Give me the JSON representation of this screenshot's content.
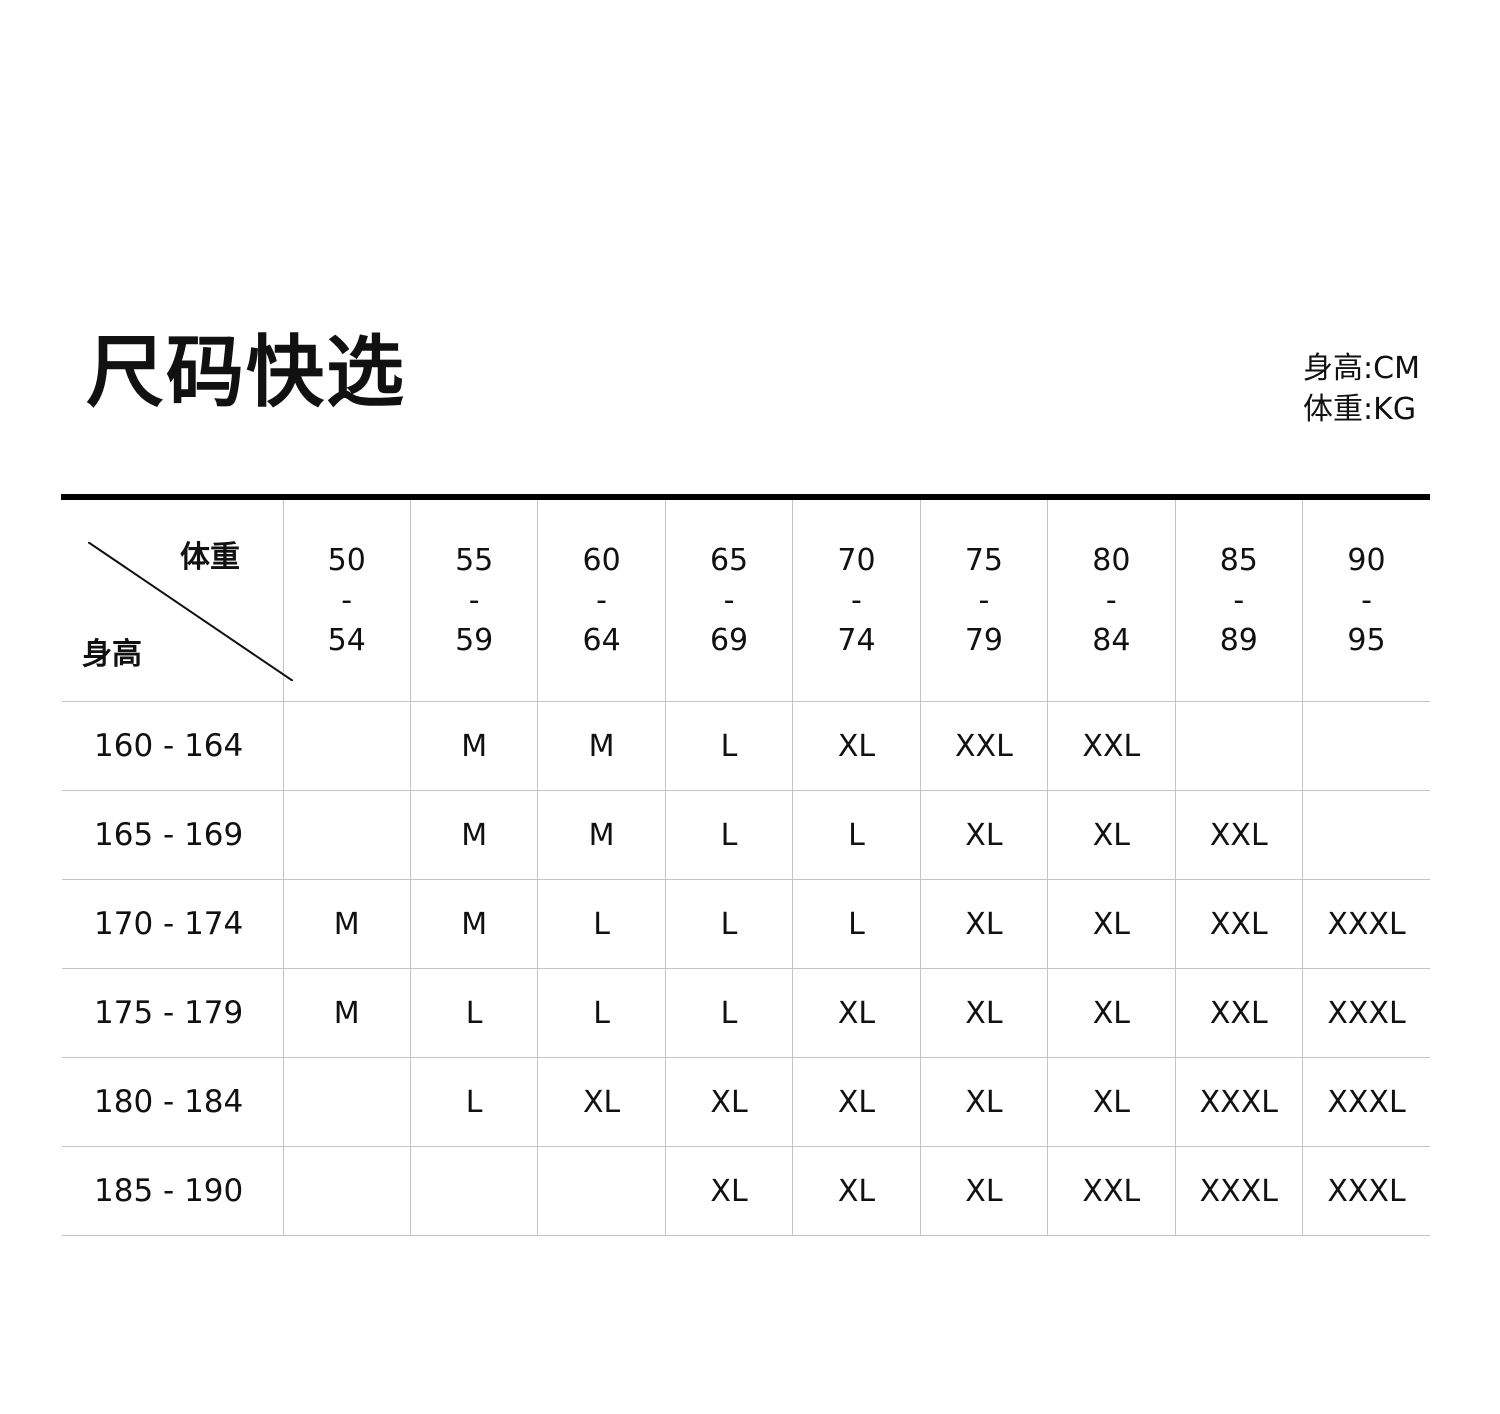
{
  "title": "尺码快选",
  "units": {
    "height": "身高:CM",
    "weight": "体重:KG"
  },
  "corner": {
    "weight_label": "体重",
    "height_label": "身高"
  },
  "chart_data": {
    "type": "table",
    "weight_columns": [
      [
        "50",
        "-",
        "54"
      ],
      [
        "55",
        "-",
        "59"
      ],
      [
        "60",
        "-",
        "64"
      ],
      [
        "65",
        "-",
        "69"
      ],
      [
        "70",
        "-",
        "74"
      ],
      [
        "75",
        "-",
        "79"
      ],
      [
        "80",
        "-",
        "84"
      ],
      [
        "85",
        "-",
        "89"
      ],
      [
        "90",
        "-",
        "95"
      ]
    ],
    "rows": [
      {
        "height": "160 - 164",
        "sizes": [
          "",
          "M",
          "M",
          "L",
          "XL",
          "XXL",
          "XXL",
          "",
          ""
        ]
      },
      {
        "height": "165 - 169",
        "sizes": [
          "",
          "M",
          "M",
          "L",
          "L",
          "XL",
          "XL",
          "XXL",
          ""
        ]
      },
      {
        "height": "170 - 174",
        "sizes": [
          "M",
          "M",
          "L",
          "L",
          "L",
          "XL",
          "XL",
          "XXL",
          "XXXL"
        ]
      },
      {
        "height": "175 - 179",
        "sizes": [
          "M",
          "L",
          "L",
          "L",
          "XL",
          "XL",
          "XL",
          "XXL",
          "XXXL"
        ]
      },
      {
        "height": "180 - 184",
        "sizes": [
          "",
          "L",
          "XL",
          "XL",
          "XL",
          "XL",
          "XL",
          "XXXL",
          "XXXL"
        ]
      },
      {
        "height": "185 - 190",
        "sizes": [
          "",
          "",
          "",
          "XL",
          "XL",
          "XL",
          "XXL",
          "XXXL",
          "XXXL"
        ]
      }
    ]
  }
}
